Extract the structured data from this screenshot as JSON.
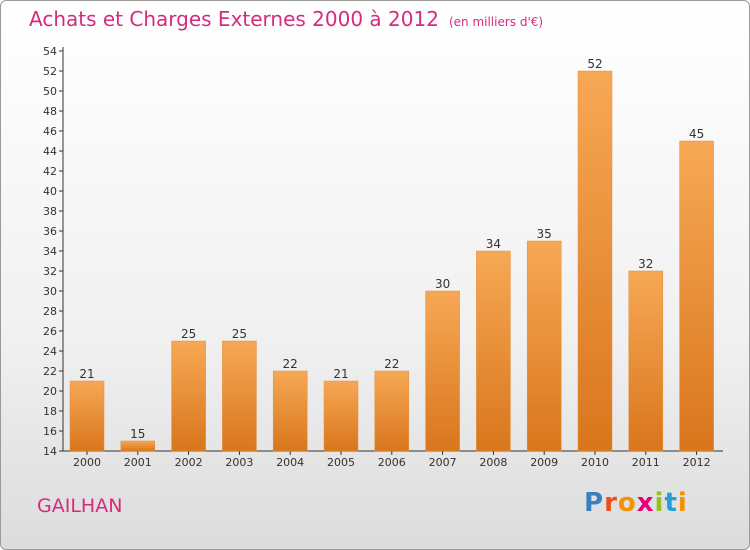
{
  "header": {
    "title": "Achats et Charges Externes 2000 à 2012",
    "unit": "(en milliers d'€)"
  },
  "footer": {
    "city": "GAILHAN",
    "brand_letters": [
      "P",
      "r",
      "o",
      "x",
      "i",
      "t",
      "i"
    ]
  },
  "colors": {
    "title": "#d42c7d",
    "bar_top": "#f7a855",
    "bar_bottom": "#d9761d",
    "brand": [
      "#3a7fc2",
      "#e94f1d",
      "#f39200",
      "#e6007e",
      "#95c11f",
      "#1ea0db",
      "#f39200"
    ]
  },
  "chart_data": {
    "type": "bar",
    "title": "Achats et Charges Externes 2000 à 2012",
    "subtitle": "(en milliers d'€)",
    "categories": [
      "2000",
      "2001",
      "2002",
      "2003",
      "2004",
      "2005",
      "2006",
      "2007",
      "2008",
      "2009",
      "2010",
      "2011",
      "2012"
    ],
    "values": [
      21,
      15,
      25,
      25,
      22,
      21,
      22,
      30,
      34,
      35,
      52,
      32,
      45
    ],
    "ylim": [
      14,
      54
    ],
    "yticks": [
      14,
      16,
      18,
      20,
      22,
      24,
      26,
      28,
      30,
      32,
      34,
      36,
      38,
      40,
      42,
      44,
      46,
      48,
      50,
      52,
      54
    ],
    "grid": false,
    "data_labels": true
  }
}
